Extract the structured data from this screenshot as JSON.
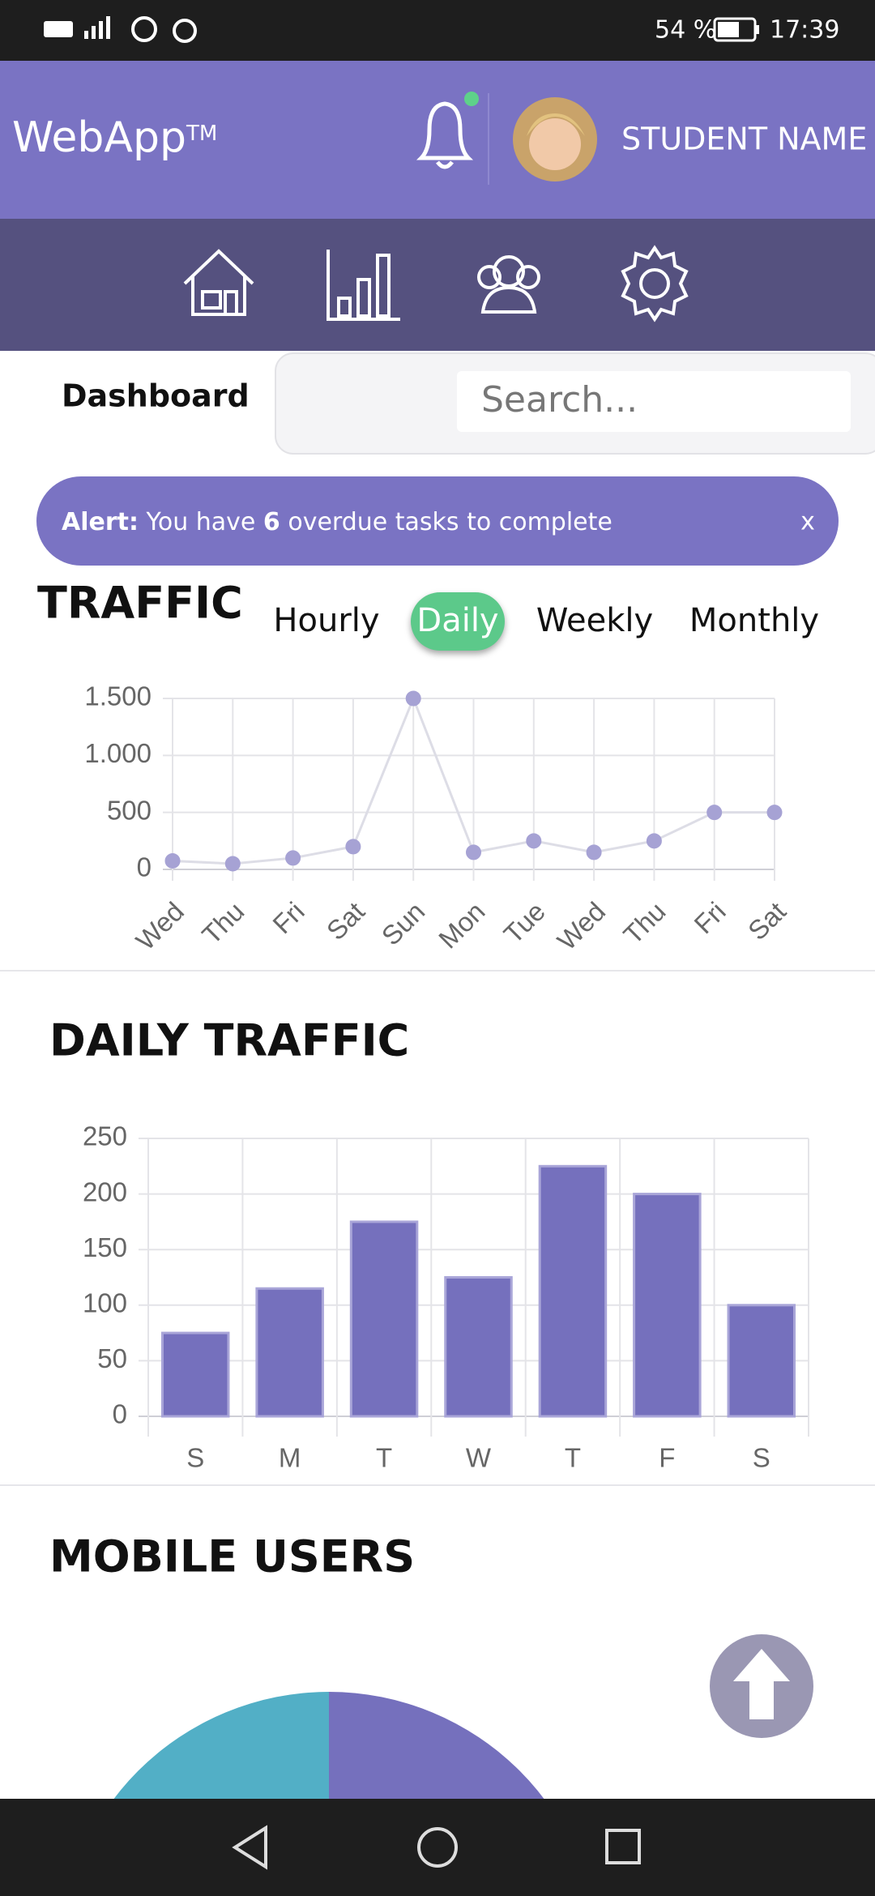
{
  "status_bar": {
    "battery": "54 %",
    "time": "17:39"
  },
  "header": {
    "brand": "WebApp",
    "brand_mark": "TM",
    "user": "STUDENT NAME"
  },
  "toolbar": {
    "page": "Dashboard",
    "search_placeholder": "Search..."
  },
  "alert": {
    "label": "Alert:",
    "text_before": " You have ",
    "count": "6",
    "text_after": " overdue tasks to complete",
    "close": "x"
  },
  "tabs": {
    "items": [
      "Hourly",
      "Daily",
      "Weekly",
      "Monthly"
    ],
    "active": "Daily"
  },
  "chart_data": [
    {
      "type": "line",
      "title": "TRAFFIC",
      "categories": [
        "Wed",
        "Thu",
        "Fri",
        "Sat",
        "Sun",
        "Mon",
        "Tue",
        "Wed",
        "Thu",
        "Fri",
        "Sat"
      ],
      "values": [
        75,
        50,
        100,
        200,
        1500,
        150,
        250,
        150,
        250,
        500,
        500
      ],
      "color": "#a6a2d4",
      "line_color": "#dddde6",
      "ylim": [
        0,
        1500
      ],
      "yticks": [
        0,
        500,
        {
          "value": 1000,
          "label": "1.000"
        },
        {
          "value": 1500,
          "label": "1.500"
        }
      ],
      "grid": true
    },
    {
      "type": "bar",
      "title": "DAILY TRAFFIC",
      "categories": [
        "S",
        "M",
        "T",
        "W",
        "T",
        "F",
        "S"
      ],
      "values": [
        75,
        115,
        175,
        125,
        225,
        200,
        100
      ],
      "color": "#7570bd",
      "ylim": [
        0,
        250
      ],
      "yticks": [
        0,
        50,
        100,
        150,
        200,
        250
      ],
      "grid": true
    }
  ],
  "sections": {
    "mobile_users": "MOBILE USERS"
  }
}
